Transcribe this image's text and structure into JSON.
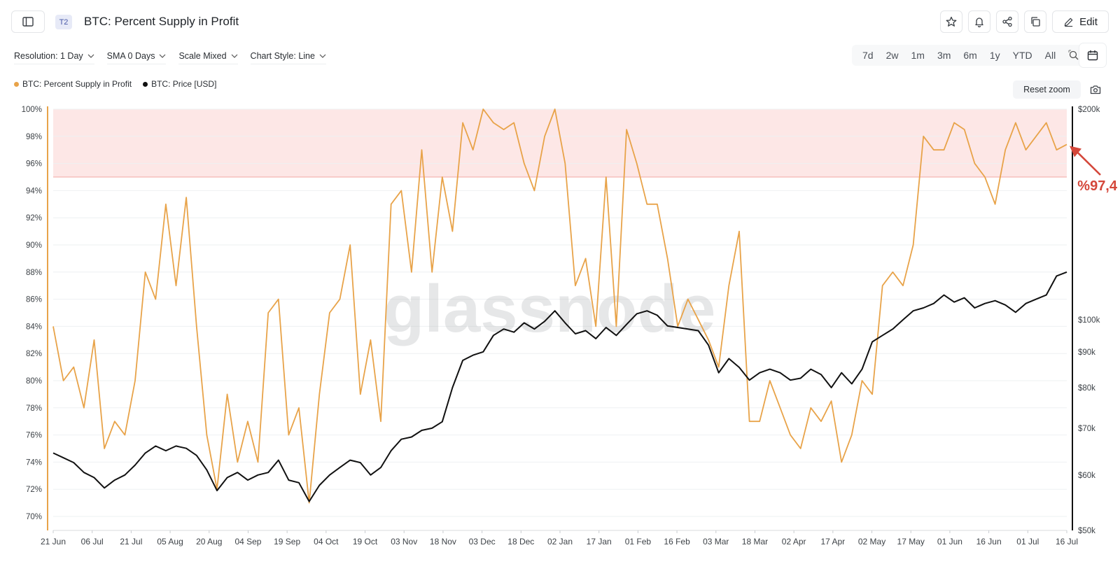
{
  "header": {
    "tier_badge": "T2",
    "title": "BTC: Percent Supply in Profit",
    "edit_label": "Edit",
    "icons": [
      "sidebar-toggle-icon",
      "star-icon",
      "bell-icon",
      "share-icon",
      "copy-icon",
      "pencil-icon"
    ]
  },
  "toolbar": {
    "resolution": "Resolution: 1 Day",
    "sma": "SMA 0 Days",
    "scale": "Scale Mixed",
    "chart_style": "Chart Style: Line",
    "ranges": [
      "7d",
      "2w",
      "1m",
      "3m",
      "6m",
      "1y",
      "YTD",
      "All"
    ]
  },
  "legend": {
    "series1": "BTC: Percent Supply in Profit",
    "series2": "BTC: Price [USD]",
    "reset_zoom": "Reset zoom"
  },
  "annotation": {
    "text": "%97,4",
    "color": "#d4473a"
  },
  "watermark": "glassnode",
  "colors": {
    "supply": "#e8a349",
    "price": "#111111",
    "band_fill": "#fde7e6",
    "band_line": "#f2a7a1"
  },
  "chart_data": {
    "type": "line",
    "x_tick_labels": [
      "21 Jun",
      "06 Jul",
      "21 Jul",
      "05 Aug",
      "20 Aug",
      "04 Sep",
      "19 Sep",
      "04 Oct",
      "19 Oct",
      "03 Nov",
      "18 Nov",
      "03 Dec",
      "18 Dec",
      "02 Jan",
      "17 Jan",
      "01 Feb",
      "16 Feb",
      "03 Mar",
      "18 Mar",
      "02 Apr",
      "17 Apr",
      "02 May",
      "17 May",
      "01 Jun",
      "16 Jun",
      "01 Jul",
      "16 Jul"
    ],
    "y_left": {
      "ticks": [
        "100%",
        "98%",
        "96%",
        "94%",
        "92%",
        "90%",
        "88%",
        "86%",
        "84%",
        "82%",
        "80%",
        "78%",
        "76%",
        "74%",
        "72%",
        "70%"
      ],
      "range": [
        69,
        100
      ]
    },
    "y_right": {
      "scale": "log",
      "ticks": [
        {
          "label": "$200k",
          "value": 200000
        },
        {
          "label": "$100k",
          "value": 100000
        },
        {
          "label": "$90k",
          "value": 90000
        },
        {
          "label": "$80k",
          "value": 80000
        },
        {
          "label": "$70k",
          "value": 70000
        },
        {
          "label": "$60k",
          "value": 60000
        },
        {
          "label": "$50k",
          "value": 50000
        }
      ],
      "range": [
        50000,
        200000
      ]
    },
    "band": {
      "from": 95,
      "to": 100
    },
    "series": [
      {
        "name": "BTC: Percent Supply in Profit",
        "axis": "left",
        "points": [
          [
            0,
            84
          ],
          [
            2,
            80
          ],
          [
            4,
            81
          ],
          [
            6,
            78
          ],
          [
            8,
            83
          ],
          [
            10,
            75
          ],
          [
            12,
            77
          ],
          [
            14,
            76
          ],
          [
            16,
            80
          ],
          [
            18,
            88
          ],
          [
            20,
            86
          ],
          [
            22,
            93
          ],
          [
            24,
            87
          ],
          [
            26,
            93.5
          ],
          [
            28,
            84
          ],
          [
            30,
            76
          ],
          [
            32,
            72
          ],
          [
            34,
            79
          ],
          [
            36,
            74
          ],
          [
            38,
            77
          ],
          [
            40,
            74
          ],
          [
            42,
            85
          ],
          [
            44,
            86
          ],
          [
            46,
            76
          ],
          [
            48,
            78
          ],
          [
            50,
            71
          ],
          [
            52,
            79
          ],
          [
            54,
            85
          ],
          [
            56,
            86
          ],
          [
            58,
            90
          ],
          [
            60,
            79
          ],
          [
            62,
            83
          ],
          [
            64,
            77
          ],
          [
            66,
            93
          ],
          [
            68,
            94
          ],
          [
            70,
            88
          ],
          [
            72,
            97
          ],
          [
            74,
            88
          ],
          [
            76,
            95
          ],
          [
            78,
            91
          ],
          [
            80,
            99
          ],
          [
            82,
            97
          ],
          [
            84,
            100
          ],
          [
            86,
            99
          ],
          [
            88,
            98.5
          ],
          [
            90,
            99
          ],
          [
            92,
            96
          ],
          [
            94,
            94
          ],
          [
            96,
            98
          ],
          [
            98,
            100
          ],
          [
            100,
            96
          ],
          [
            102,
            87
          ],
          [
            104,
            89
          ],
          [
            106,
            84
          ],
          [
            108,
            95
          ],
          [
            110,
            84
          ],
          [
            112,
            98.5
          ],
          [
            114,
            96
          ],
          [
            116,
            93
          ],
          [
            118,
            93
          ],
          [
            120,
            89
          ],
          [
            122,
            84
          ],
          [
            124,
            86
          ],
          [
            126,
            84.5
          ],
          [
            128,
            83
          ],
          [
            130,
            81
          ],
          [
            132,
            87
          ],
          [
            134,
            91
          ],
          [
            136,
            77
          ],
          [
            138,
            77
          ],
          [
            140,
            80
          ],
          [
            142,
            78
          ],
          [
            144,
            76
          ],
          [
            146,
            75
          ],
          [
            148,
            78
          ],
          [
            150,
            77
          ],
          [
            152,
            78.5
          ],
          [
            154,
            74
          ],
          [
            156,
            76
          ],
          [
            158,
            80
          ],
          [
            160,
            79
          ],
          [
            162,
            87
          ],
          [
            164,
            88
          ],
          [
            166,
            87
          ],
          [
            168,
            90
          ],
          [
            170,
            98
          ],
          [
            172,
            97
          ],
          [
            174,
            97
          ],
          [
            176,
            99
          ],
          [
            178,
            98.5
          ],
          [
            180,
            96
          ],
          [
            182,
            95
          ],
          [
            184,
            93
          ],
          [
            186,
            97
          ],
          [
            188,
            99
          ],
          [
            190,
            97
          ],
          [
            192,
            98
          ],
          [
            194,
            99
          ],
          [
            196,
            97
          ],
          [
            198,
            97.4
          ]
        ]
      },
      {
        "name": "BTC: Price [USD]",
        "axis": "right",
        "points": [
          [
            0,
            64500
          ],
          [
            2,
            63500
          ],
          [
            4,
            62500
          ],
          [
            6,
            60500
          ],
          [
            8,
            59500
          ],
          [
            10,
            57500
          ],
          [
            12,
            59000
          ],
          [
            14,
            60000
          ],
          [
            16,
            62000
          ],
          [
            18,
            64500
          ],
          [
            20,
            66000
          ],
          [
            22,
            65000
          ],
          [
            24,
            66000
          ],
          [
            26,
            65500
          ],
          [
            28,
            64000
          ],
          [
            30,
            61000
          ],
          [
            32,
            57000
          ],
          [
            34,
            59500
          ],
          [
            36,
            60500
          ],
          [
            38,
            59000
          ],
          [
            40,
            60000
          ],
          [
            42,
            60500
          ],
          [
            44,
            63000
          ],
          [
            46,
            59000
          ],
          [
            48,
            58500
          ],
          [
            50,
            55000
          ],
          [
            52,
            58000
          ],
          [
            54,
            60000
          ],
          [
            56,
            61500
          ],
          [
            58,
            63000
          ],
          [
            60,
            62500
          ],
          [
            62,
            60000
          ],
          [
            64,
            61500
          ],
          [
            66,
            65000
          ],
          [
            68,
            67500
          ],
          [
            70,
            68000
          ],
          [
            72,
            69500
          ],
          [
            74,
            70000
          ],
          [
            76,
            71500
          ],
          [
            78,
            80000
          ],
          [
            80,
            87500
          ],
          [
            82,
            89000
          ],
          [
            84,
            90000
          ],
          [
            86,
            95000
          ],
          [
            88,
            97000
          ],
          [
            90,
            96000
          ],
          [
            92,
            99000
          ],
          [
            94,
            97000
          ],
          [
            96,
            99500
          ],
          [
            98,
            103000
          ],
          [
            100,
            99000
          ],
          [
            102,
            95500
          ],
          [
            104,
            96500
          ],
          [
            106,
            94000
          ],
          [
            108,
            97500
          ],
          [
            110,
            95000
          ],
          [
            112,
            98500
          ],
          [
            114,
            102000
          ],
          [
            116,
            103000
          ],
          [
            118,
            101500
          ],
          [
            120,
            98000
          ],
          [
            122,
            97500
          ],
          [
            124,
            97000
          ],
          [
            126,
            96500
          ],
          [
            128,
            92000
          ],
          [
            130,
            84000
          ],
          [
            132,
            88000
          ],
          [
            134,
            85500
          ],
          [
            136,
            82000
          ],
          [
            138,
            84000
          ],
          [
            140,
            85000
          ],
          [
            142,
            84000
          ],
          [
            144,
            82000
          ],
          [
            146,
            82500
          ],
          [
            148,
            85000
          ],
          [
            150,
            83500
          ],
          [
            152,
            80000
          ],
          [
            154,
            84000
          ],
          [
            156,
            81000
          ],
          [
            158,
            85000
          ],
          [
            160,
            93000
          ],
          [
            162,
            95000
          ],
          [
            164,
            97000
          ],
          [
            166,
            100000
          ],
          [
            168,
            103000
          ],
          [
            170,
            104000
          ],
          [
            172,
            105500
          ],
          [
            174,
            108500
          ],
          [
            176,
            106000
          ],
          [
            178,
            107500
          ],
          [
            180,
            104000
          ],
          [
            182,
            105500
          ],
          [
            184,
            106500
          ],
          [
            186,
            105000
          ],
          [
            188,
            102500
          ],
          [
            190,
            105500
          ],
          [
            192,
            107000
          ],
          [
            194,
            108500
          ],
          [
            196,
            115500
          ],
          [
            198,
            117000
          ]
        ]
      }
    ]
  }
}
